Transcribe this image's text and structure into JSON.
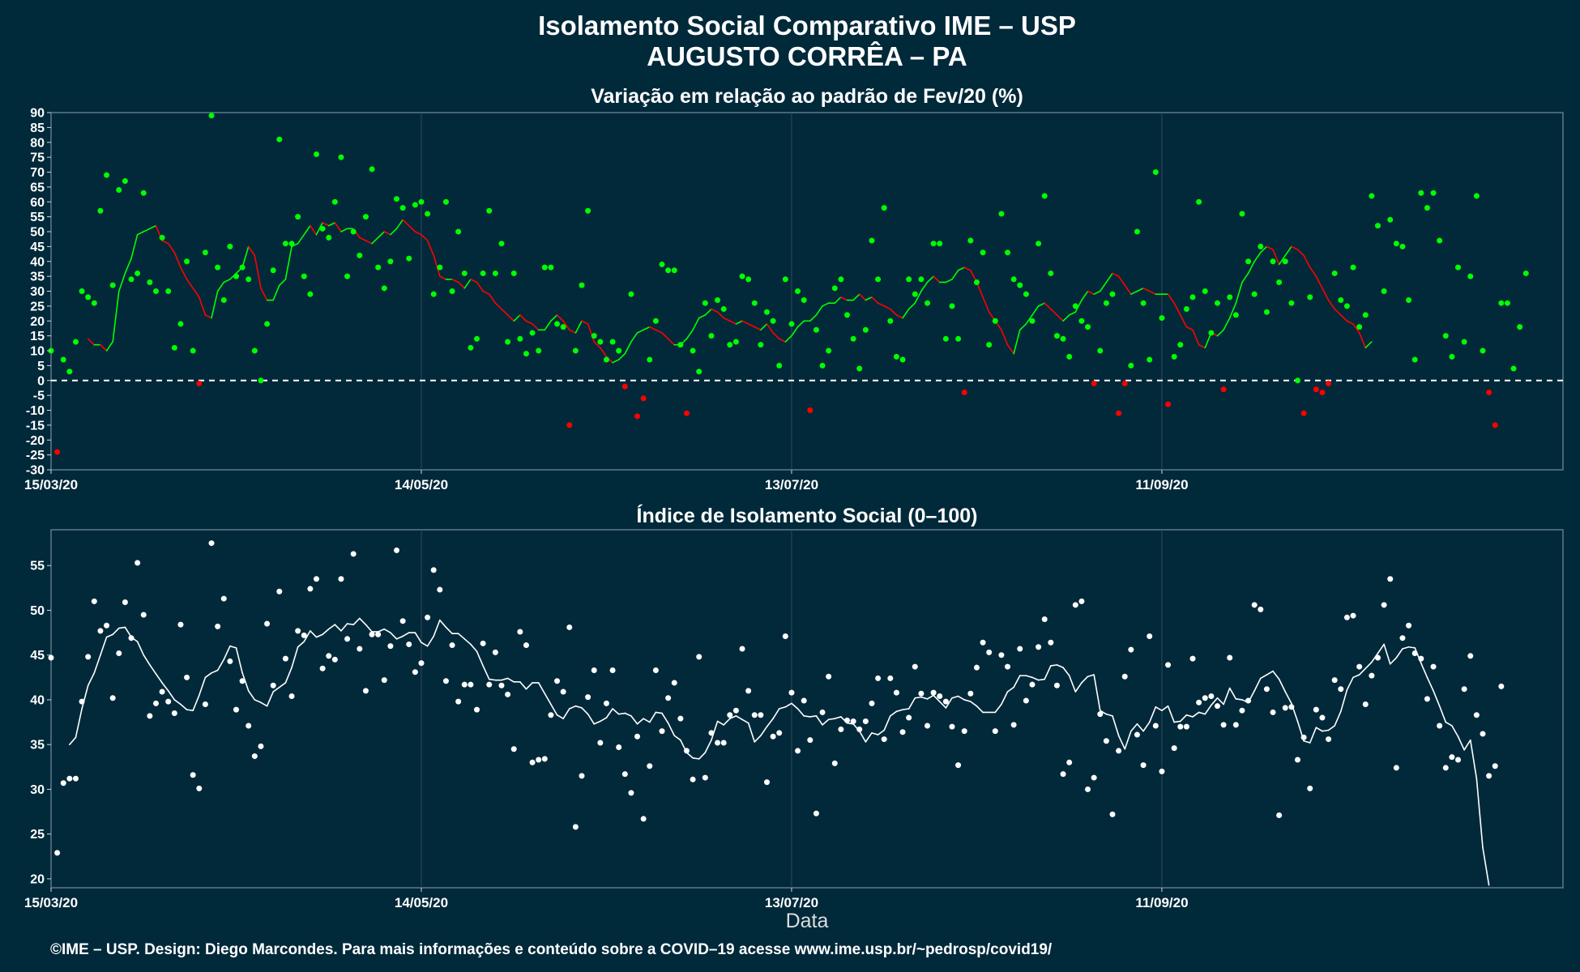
{
  "title_line1": "Isolamento Social Comparativo IME – USP",
  "title_line2": "AUGUSTO CORRÊA – PA",
  "caption": "©IME – USP. Design: Diego Marcondes. Para mais informações e conteúdo sobre a COVID–19 acesse www.ime.usp.br/~pedrosp/covid19/",
  "colors": {
    "background": "#00293a",
    "positive": "#00ff00",
    "negative": "#ff0000",
    "index": "#ffffff",
    "zero_line": "#ffffff",
    "grid": "#2f4a58"
  },
  "chart_data": [
    {
      "type": "scatter",
      "title": "Variação em relação ao padrão de Fev/20 (%)",
      "xlabel": "",
      "ylabel": "",
      "xlim": [
        "2020-03-15",
        "2020-11-15"
      ],
      "ylim": [
        -30,
        90
      ],
      "yticks": [
        -30,
        -25,
        -20,
        -15,
        -10,
        -5,
        0,
        5,
        10,
        15,
        20,
        25,
        30,
        35,
        40,
        45,
        50,
        55,
        60,
        65,
        70,
        75,
        80,
        85,
        90
      ],
      "xticks": [
        "15/03/20",
        "14/05/20",
        "13/07/20",
        "11/09/20"
      ],
      "reference_line": 0,
      "grid": true,
      "legend": "none",
      "series": [
        {
          "kind": "points",
          "x_start": "2020-03-15",
          "step_days": 1,
          "values": [
            10,
            -24,
            7,
            3,
            13,
            30,
            28,
            26,
            57,
            69,
            32,
            64,
            67,
            34,
            36,
            63,
            33,
            30,
            48,
            30,
            11,
            19,
            40,
            10,
            -1,
            43,
            89,
            38,
            27,
            45,
            35,
            38,
            34,
            10,
            0,
            19,
            37,
            81,
            46,
            46,
            55,
            35,
            29,
            76,
            51,
            48,
            60,
            75,
            35,
            50,
            42,
            55,
            71,
            38,
            31,
            40,
            61,
            58,
            41,
            59,
            60,
            56,
            29,
            38,
            60,
            30,
            50,
            36,
            11,
            14,
            36,
            57,
            36,
            46,
            13,
            36,
            14,
            9,
            16,
            10,
            38,
            38,
            19,
            18,
            -15,
            10,
            32,
            57,
            15,
            13,
            7,
            13,
            10,
            -2,
            29,
            -12,
            -6,
            7,
            20,
            39,
            37,
            37,
            12,
            -11,
            10,
            3,
            26,
            15,
            27,
            24,
            12,
            13,
            35,
            34,
            26,
            12,
            23,
            20,
            5,
            34,
            19,
            30,
            27,
            -10,
            17,
            5,
            10,
            31,
            34,
            22,
            14,
            4,
            17,
            47,
            34,
            58,
            20,
            8,
            7,
            34,
            29,
            34,
            26,
            46,
            46,
            14,
            25,
            14,
            -4,
            47,
            33,
            43,
            12,
            20,
            56,
            43,
            34,
            32,
            29,
            20,
            46,
            62,
            36,
            15,
            14,
            8,
            25,
            20,
            18,
            -1,
            10,
            26,
            29,
            -11,
            -1,
            5,
            50,
            26,
            7,
            70,
            21,
            -8,
            8,
            12,
            24,
            28,
            60,
            30,
            16,
            26,
            -3,
            28,
            22,
            56,
            40,
            29,
            45,
            23,
            40,
            33,
            40,
            26,
            0,
            -11,
            28,
            -3,
            -4,
            -1,
            36,
            27,
            25,
            38,
            18,
            22,
            62,
            52,
            30,
            54,
            46,
            45,
            27,
            7,
            63,
            58,
            63,
            47,
            15,
            8,
            38,
            13,
            35,
            62,
            10,
            -4,
            -15,
            26,
            26,
            4,
            18,
            36
          ]
        },
        {
          "kind": "moving_average",
          "x_start": "2020-03-21",
          "step_days": 1,
          "values": [
            14,
            12,
            12,
            10,
            13,
            30,
            36,
            41,
            49,
            50,
            51,
            52,
            47,
            46,
            43,
            38,
            34,
            31,
            28,
            22,
            21,
            30,
            33,
            34,
            36,
            38,
            45,
            42,
            31,
            27,
            27,
            32,
            34,
            45,
            46,
            49,
            52,
            49,
            53,
            52,
            53,
            50,
            51,
            51,
            48,
            47,
            46,
            48,
            50,
            49,
            51,
            54,
            52,
            50,
            49,
            47,
            42,
            35,
            34,
            34,
            33,
            31,
            34,
            33,
            30,
            29,
            26,
            24,
            22,
            20,
            22,
            20,
            19,
            17,
            17,
            20,
            22,
            20,
            17,
            16,
            20,
            19,
            13,
            11,
            8,
            6,
            7,
            9,
            13,
            16,
            17,
            18,
            17,
            16,
            14,
            12,
            12,
            14,
            17,
            21,
            22,
            24,
            23,
            21,
            20,
            19,
            20,
            19,
            18,
            17,
            19,
            16,
            14,
            13,
            15,
            18,
            20,
            20,
            22,
            25,
            26,
            26,
            28,
            27,
            27,
            29,
            27,
            28,
            26,
            25,
            24,
            22,
            21,
            24,
            26,
            30,
            33,
            35,
            33,
            33,
            34,
            37,
            38,
            37,
            33,
            28,
            23,
            20,
            17,
            12,
            9,
            17,
            19,
            22,
            25,
            26,
            24,
            22,
            20,
            22,
            23,
            27,
            30,
            29,
            30,
            33,
            36,
            35,
            32,
            29,
            30,
            31,
            30,
            29,
            29,
            29,
            26,
            22,
            18,
            17,
            12,
            11,
            16,
            15,
            17,
            21,
            26,
            33,
            36,
            40,
            43,
            45,
            44,
            39,
            42,
            45,
            44,
            42,
            38,
            35,
            31,
            27,
            24,
            22,
            20,
            19,
            16,
            11,
            13
          ]
        }
      ]
    },
    {
      "type": "scatter",
      "title": "Índice de Isolamento Social (0–100)",
      "xlabel": "Data",
      "ylabel": "",
      "xlim": [
        "2020-03-15",
        "2020-11-15"
      ],
      "ylim": [
        19,
        59
      ],
      "yticks": [
        20,
        25,
        30,
        35,
        40,
        45,
        50,
        55
      ],
      "xticks": [
        "15/03/20",
        "14/05/20",
        "13/07/20",
        "11/09/20"
      ],
      "grid": true,
      "legend": "none",
      "series": [
        {
          "kind": "points",
          "x_start": "2020-03-15",
          "step_days": 1,
          "values": [
            44.7,
            22.9,
            30.7,
            31.2,
            31.2,
            39.8,
            44.8,
            51,
            47.7,
            48.3,
            40.2,
            45.2,
            50.9,
            46.9,
            55.3,
            49.5,
            38.2,
            39.6,
            40.9,
            39.8,
            38.5,
            48.4,
            42.5,
            31.6,
            30.1,
            39.5,
            57.5,
            48.2,
            51.3,
            44.3,
            38.9,
            42.1,
            37.1,
            33.7,
            34.8,
            48.5,
            41.6,
            52.1,
            44.6,
            40.4,
            47.7,
            47.2,
            52.4,
            53.5,
            43.5,
            44.9,
            44.5,
            53.5,
            46.8,
            56.3,
            45.7,
            41,
            47.3,
            47.3,
            42.2,
            46,
            56.7,
            48.8,
            46.2,
            43.1,
            44.1,
            49.2,
            54.5,
            52.3,
            42.1,
            46.1,
            39.8,
            41.7,
            41.7,
            38.9,
            46.3,
            41.7,
            45.3,
            41.6,
            40.6,
            34.5,
            47.6,
            46.1,
            33,
            33.3,
            33.4,
            38.3,
            42.1,
            40.9,
            48.1,
            25.8,
            31.5,
            40.3,
            43.3,
            35.2,
            39.6,
            43.3,
            34.7,
            31.7,
            29.6,
            35.9,
            26.7,
            32.6,
            43.3,
            36.5,
            40.2,
            41.9,
            37.9,
            34.3,
            31.1,
            44.8,
            31.3,
            36.3,
            35.2,
            35.2,
            38.3,
            38.8,
            45.7,
            41,
            38.3,
            38.3,
            30.8,
            35.9,
            36.3,
            47.1,
            40.8,
            34.3,
            39.9,
            35.5,
            27.3,
            38.6,
            42.6,
            32.9,
            36.7,
            37.7,
            37.6,
            36.7,
            37.6,
            39.6,
            42.4,
            35.6,
            42.4,
            40.8,
            36.4,
            38,
            43.7,
            40.7,
            37.1,
            40.8,
            40.4,
            39.8,
            37,
            32.7,
            36.5,
            40.7,
            43.6,
            46.4,
            45.3,
            36.5,
            45,
            43.7,
            37.2,
            45.7,
            39.9,
            41.7,
            45.9,
            49,
            46.4,
            41.6,
            31.7,
            33,
            50.6,
            51,
            30,
            31.3,
            38.4,
            35.4,
            27.2,
            34.3,
            42.6,
            45.6,
            36.1,
            32.7,
            47.1,
            37.1,
            32,
            43.9,
            34.6,
            37,
            37,
            44.6,
            39.7,
            40.2,
            40.4,
            39.3,
            37.2,
            44.7,
            37.2,
            38.8,
            39.9,
            50.6,
            50.1,
            41.2,
            38.6,
            27.1,
            39.1,
            39.2,
            33.3,
            35.8,
            30.1,
            38.9,
            38,
            35.6,
            42.2,
            41.2,
            49.2,
            49.4,
            43.7,
            39.5,
            42.7,
            44.7,
            50.6,
            53.5,
            32.4,
            46.9,
            48.3,
            45.2,
            44.6,
            40.1,
            43.7,
            37.1,
            32.4,
            33.6,
            33.3,
            41.2,
            44.9,
            38.3,
            36.2,
            31.5,
            32.6,
            41.5
          ]
        },
        {
          "kind": "moving_average",
          "x_start": "2020-03-18",
          "step_days": 1,
          "values": [
            35,
            35.8,
            39,
            41.6,
            43,
            45,
            47,
            47.3,
            48,
            48.1,
            47,
            46.5,
            45,
            43.9,
            42.9,
            41.9,
            41,
            40,
            39.5,
            38.9,
            38.8,
            40.5,
            42.5,
            43,
            43.3,
            44.5,
            46,
            45.8,
            43,
            41,
            40,
            39.7,
            39.3,
            40.9,
            41.4,
            41.9,
            43.6,
            45.9,
            46.5,
            47.7,
            47,
            47.3,
            47.9,
            48.4,
            47.7,
            48.5,
            48.4,
            49.1,
            48.4,
            47.6,
            47.6,
            47.9,
            47.5,
            46.8,
            47.1,
            47.5,
            47.5,
            46.4,
            46,
            47.1,
            48.9,
            48.1,
            47.4,
            47.4,
            46.8,
            46.2,
            45.4,
            43.8,
            42.3,
            42.2,
            42.2,
            42.4,
            42,
            42,
            41.2,
            41.9,
            41.9,
            40.7,
            39.5,
            38.3,
            37.9,
            39,
            39.3,
            39.1,
            38.4,
            37.3,
            37.6,
            38,
            39,
            38.4,
            38.5,
            38.2,
            37.3,
            37.9,
            37.5,
            38.6,
            38.5,
            37.4,
            36,
            35.5,
            34.1,
            33.5,
            33.4,
            34.1,
            35.5,
            37.6,
            37.2,
            37.9,
            38.2,
            37.8,
            37.4,
            35.3,
            36,
            37,
            37.9,
            39,
            39.2,
            39.6,
            39,
            38.2,
            38.1,
            38.2,
            37.2,
            37.8,
            37.9,
            38.1,
            37.4,
            37.3,
            36.5,
            35.3,
            36.3,
            36.1,
            36.6,
            38.2,
            38.7,
            38.9,
            39,
            40.2,
            40.3,
            40.1,
            40.5,
            39.8,
            39.1,
            40.2,
            40.4,
            40,
            39.8,
            39.3,
            38.6,
            38.6,
            38.6,
            39.5,
            40.9,
            41.4,
            42.7,
            42.7,
            42.5,
            42.2,
            42.3,
            43.8,
            43.9,
            43.6,
            42.7,
            40.9,
            41.9,
            42.6,
            42.8,
            38.8,
            38.4,
            38.2,
            36,
            34.5,
            36.5,
            37.3,
            36.5,
            37.5,
            39.2,
            38.8,
            39.3,
            37.5,
            37.6,
            38.3,
            38.1,
            38.6,
            38.4,
            39.4,
            40.2,
            39.5,
            41.3,
            40.1,
            40,
            39.7,
            41,
            42.4,
            42.8,
            43.2,
            42.3,
            40.9,
            39.6,
            37.6,
            35.4,
            35.2,
            36.9,
            36.5,
            36.6,
            37.1,
            38.7,
            41.1,
            42.5,
            42.8,
            43.5,
            44.2,
            45.2,
            46.2,
            44,
            44.7,
            45.7,
            45.9,
            45.8,
            44.1,
            42.5,
            41,
            39.3,
            37.5,
            37.1,
            35.9,
            34.4,
            35.5,
            31.2,
            23.5,
            19.3
          ]
        }
      ]
    }
  ]
}
